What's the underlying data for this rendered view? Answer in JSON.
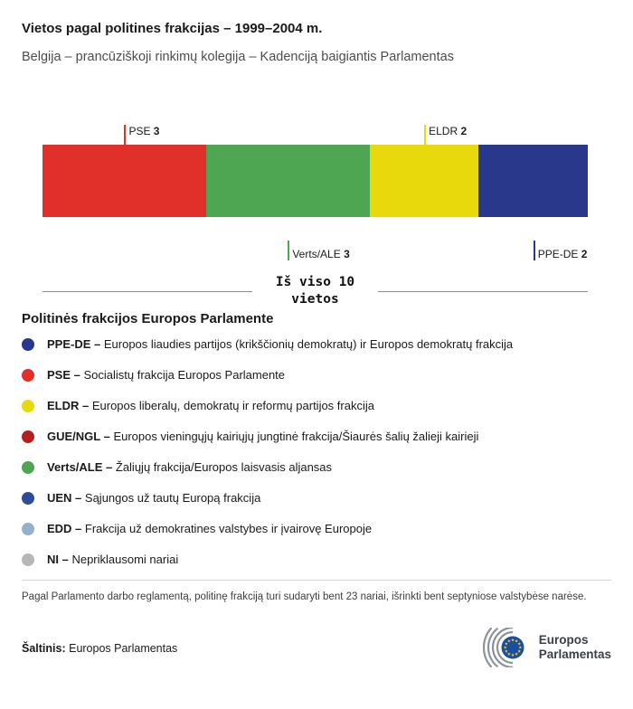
{
  "header": {
    "title": "Vietos pagal politines frakcijas – 1999–2004 m.",
    "subtitle": "Belgija – prancūziškoji rinkimų kolegija – Kadenciją baigiantis Parlamentas"
  },
  "chart_data": {
    "type": "bar",
    "subtype": "stacked-horizontal",
    "total_seats": 10,
    "total_label_line1": "Iš viso 10",
    "total_label_line2": "vietos",
    "segments": [
      {
        "name": "PSE",
        "value": 3,
        "color": "#e1302a",
        "callout": "top"
      },
      {
        "name": "Verts/ALE",
        "value": 3,
        "color": "#4ea653",
        "callout": "bottom"
      },
      {
        "name": "ELDR",
        "value": 2,
        "color": "#e8d90c",
        "callout": "top"
      },
      {
        "name": "PPE-DE",
        "value": 2,
        "color": "#29388b",
        "callout": "bottom"
      }
    ]
  },
  "legend": {
    "heading": "Politinės frakcijos Europos Parlamente",
    "items": [
      {
        "abbr": "PPE-DE –",
        "desc": "Europos liaudies partijos (krikščionių demokratų) ir Europos demokratų frakcija",
        "color": "#29388b"
      },
      {
        "abbr": "PSE –",
        "desc": "Socialistų frakcija Europos Parlamente",
        "color": "#e1302a"
      },
      {
        "abbr": "ELDR –",
        "desc": "Europos liberalų, demokratų ir reformų partijos frakcija",
        "color": "#e8d90c"
      },
      {
        "abbr": "GUE/NGL –",
        "desc": "Europos vieningųjų kairiųjų jungtinė frakcija/Šiaurės šalių žalieji kairieji",
        "color": "#b31f1f"
      },
      {
        "abbr": "Verts/ALE –",
        "desc": "Žaliųjų frakcija/Europos laisvasis aljansas",
        "color": "#4ea653"
      },
      {
        "abbr": "UEN –",
        "desc": "Sąjungos už tautų Europą frakcija",
        "color": "#2f4d96"
      },
      {
        "abbr": "EDD –",
        "desc": "Frakcija už demokratines valstybes ir įvairovę Europoje",
        "color": "#93b1ca"
      },
      {
        "abbr": "NI –",
        "desc": "Nepriklausomi nariai",
        "color": "#b7b7b7"
      }
    ]
  },
  "footnote": "Pagal Parlamento darbo reglamentą, politinę frakciją turi sudaryti bent 23 nariai, išrinkti bent septyniose valstybėse narėse.",
  "source": {
    "label": "Šaltinis:",
    "value": "Europos Parlamentas"
  },
  "logo": {
    "line1": "Europos",
    "line2": "Parlamentas",
    "flag_color": "#1a4fa0",
    "star_color": "#ffcc00",
    "arc_color": "#8d939b"
  }
}
